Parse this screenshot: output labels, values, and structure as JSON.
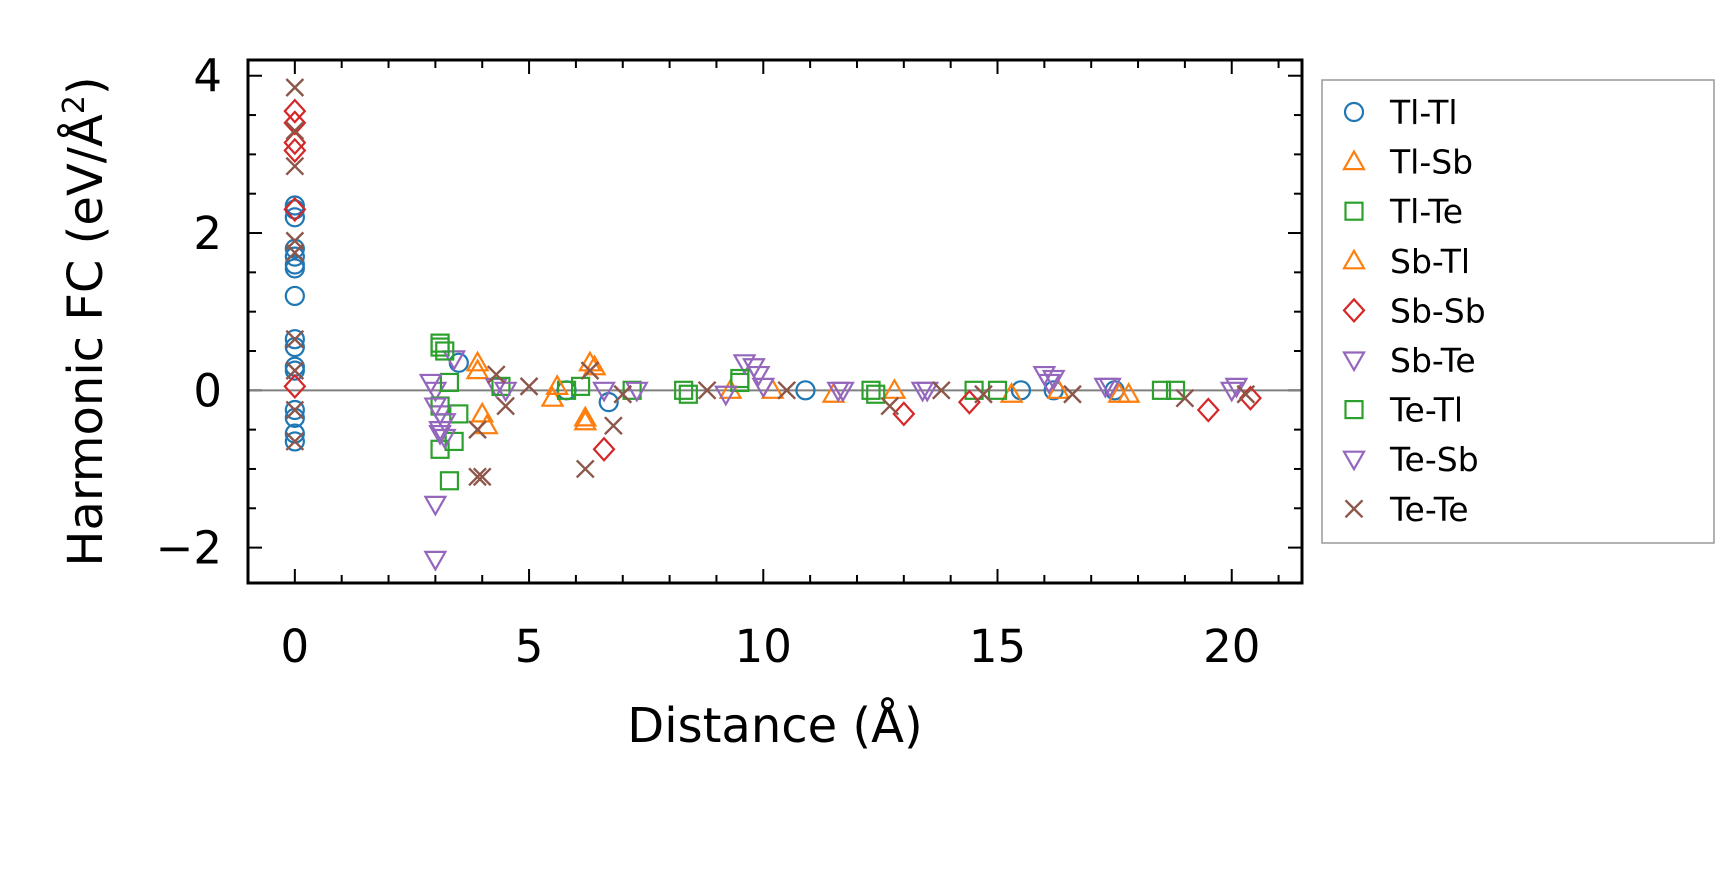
{
  "chart_data": {
    "type": "scatter",
    "title": "",
    "xlabel": "Distance (Å)",
    "ylabel": "Harmonic FC (eV/Å²)",
    "ylabel_parts": {
      "main": "Harmonic FC (eV/Å",
      "sup": "2",
      "end": ")"
    },
    "xlim": [
      -1,
      21.5
    ],
    "ylim": [
      -2.45,
      4.2
    ],
    "xticks": [
      0,
      5,
      10,
      15,
      20
    ],
    "xtick_labels": [
      "0",
      "5",
      "10",
      "15",
      "20"
    ],
    "yticks": [
      -2,
      0,
      2,
      4
    ],
    "ytick_labels": [
      "−2",
      "0",
      "2",
      "4"
    ],
    "zero_line": 0,
    "legend_position": "outside-right",
    "series": [
      {
        "name": "Tl-Tl",
        "marker": "circle",
        "fill": "none",
        "color": "#1f77b4",
        "points": [
          [
            0,
            2.35
          ],
          [
            0,
            2.3
          ],
          [
            0,
            2.2
          ],
          [
            0,
            1.8
          ],
          [
            0,
            1.7
          ],
          [
            0,
            1.6
          ],
          [
            0,
            1.55
          ],
          [
            0,
            1.2
          ],
          [
            0,
            0.65
          ],
          [
            0,
            0.55
          ],
          [
            0,
            0.3
          ],
          [
            0,
            0.25
          ],
          [
            0,
            -0.25
          ],
          [
            0,
            -0.35
          ],
          [
            0,
            -0.55
          ],
          [
            0,
            -0.65
          ],
          [
            3.5,
            0.35
          ],
          [
            5.8,
            0.0
          ],
          [
            6.7,
            -0.15
          ],
          [
            10.9,
            0.0
          ],
          [
            15.5,
            0.0
          ],
          [
            16.2,
            0.0
          ],
          [
            17.5,
            0.0
          ]
        ]
      },
      {
        "name": "Tl-Sb",
        "marker": "triangle-up",
        "fill": "none",
        "color": "#ff7f0e",
        "points": [
          [
            3.9,
            0.25
          ],
          [
            4.0,
            -0.3
          ],
          [
            5.5,
            -0.1
          ],
          [
            6.2,
            -0.4
          ],
          [
            6.3,
            0.35
          ],
          [
            9.3,
            0.0
          ],
          [
            11.5,
            -0.05
          ],
          [
            15.3,
            -0.05
          ],
          [
            17.8,
            -0.05
          ]
        ]
      },
      {
        "name": "Tl-Te",
        "marker": "square",
        "fill": "none",
        "color": "#2ca02c",
        "points": [
          [
            3.1,
            0.55
          ],
          [
            3.1,
            -0.75
          ],
          [
            3.3,
            -1.15
          ],
          [
            3.4,
            -0.65
          ],
          [
            3.5,
            -0.3
          ],
          [
            5.8,
            0.0
          ],
          [
            7.2,
            0.0
          ],
          [
            8.3,
            0.0
          ],
          [
            9.5,
            0.1
          ],
          [
            12.3,
            0.0
          ],
          [
            14.5,
            0.0
          ],
          [
            18.5,
            0.0
          ]
        ]
      },
      {
        "name": "Sb-Tl",
        "marker": "triangle-up",
        "fill": "none",
        "color": "#ff7f0e",
        "points": [
          [
            3.9,
            0.35
          ],
          [
            4.1,
            -0.45
          ],
          [
            5.6,
            0.05
          ],
          [
            6.2,
            -0.35
          ],
          [
            6.4,
            0.3
          ],
          [
            10.2,
            0.0
          ],
          [
            12.8,
            0.0
          ],
          [
            16.3,
            0.0
          ],
          [
            17.6,
            -0.05
          ]
        ]
      },
      {
        "name": "Sb-Sb",
        "marker": "diamond",
        "fill": "none",
        "color": "#d62728",
        "points": [
          [
            0,
            3.55
          ],
          [
            0,
            3.4
          ],
          [
            0,
            3.15
          ],
          [
            0,
            3.05
          ],
          [
            0,
            2.3
          ],
          [
            0,
            0.05
          ],
          [
            6.6,
            -0.75
          ],
          [
            13.0,
            -0.3
          ],
          [
            14.4,
            -0.15
          ],
          [
            19.5,
            -0.25
          ],
          [
            20.4,
            -0.1
          ]
        ]
      },
      {
        "name": "Sb-Te",
        "marker": "triangle-down",
        "fill": "none",
        "color": "#9467bd",
        "points": [
          [
            3.0,
            -1.45
          ],
          [
            3.0,
            -2.15
          ],
          [
            3.0,
            0.0
          ],
          [
            3.1,
            -0.3
          ],
          [
            3.1,
            -0.5
          ],
          [
            3.2,
            -0.6
          ],
          [
            3.4,
            0.4
          ],
          [
            4.3,
            0.05
          ],
          [
            6.6,
            0.0
          ],
          [
            9.6,
            0.35
          ],
          [
            9.8,
            0.3
          ],
          [
            9.9,
            0.2
          ],
          [
            11.6,
            0.0
          ],
          [
            13.5,
            0.0
          ],
          [
            16.0,
            0.2
          ],
          [
            16.2,
            0.15
          ],
          [
            17.3,
            0.05
          ],
          [
            20.1,
            0.05
          ]
        ]
      },
      {
        "name": "Te-Tl",
        "marker": "square",
        "fill": "none",
        "color": "#2ca02c",
        "points": [
          [
            3.1,
            0.6
          ],
          [
            3.2,
            0.5
          ],
          [
            3.1,
            -0.2
          ],
          [
            3.3,
            0.1
          ],
          [
            4.4,
            0.05
          ],
          [
            6.1,
            0.05
          ],
          [
            8.4,
            -0.05
          ],
          [
            9.5,
            0.15
          ],
          [
            12.4,
            -0.05
          ],
          [
            15.0,
            0.0
          ],
          [
            18.8,
            0.0
          ]
        ]
      },
      {
        "name": "Te-Sb",
        "marker": "triangle-down",
        "fill": "none",
        "color": "#9467bd",
        "points": [
          [
            2.9,
            0.1
          ],
          [
            3.0,
            -0.2
          ],
          [
            3.2,
            -0.4
          ],
          [
            3.1,
            -0.55
          ],
          [
            4.5,
            0.0
          ],
          [
            7.3,
            0.0
          ],
          [
            9.2,
            -0.05
          ],
          [
            10.0,
            0.05
          ],
          [
            11.7,
            0.0
          ],
          [
            13.4,
            0.0
          ],
          [
            16.1,
            0.1
          ],
          [
            17.4,
            0.05
          ],
          [
            20.0,
            0.0
          ]
        ]
      },
      {
        "name": "Te-Te",
        "marker": "x",
        "fill": "none",
        "color": "#8c564b",
        "points": [
          [
            0,
            3.85
          ],
          [
            0,
            3.3
          ],
          [
            0,
            2.85
          ],
          [
            0,
            1.9
          ],
          [
            0,
            1.75
          ],
          [
            0,
            0.65
          ],
          [
            0,
            0.25
          ],
          [
            0,
            -0.25
          ],
          [
            0,
            -0.65
          ],
          [
            3.9,
            -0.5
          ],
          [
            3.9,
            -1.1
          ],
          [
            4.0,
            -1.1
          ],
          [
            4.3,
            0.2
          ],
          [
            4.5,
            -0.2
          ],
          [
            5.0,
            0.05
          ],
          [
            6.2,
            -1.0
          ],
          [
            6.3,
            0.25
          ],
          [
            6.8,
            -0.45
          ],
          [
            7.0,
            -0.05
          ],
          [
            8.8,
            0.0
          ],
          [
            10.5,
            0.0
          ],
          [
            12.7,
            -0.2
          ],
          [
            13.8,
            0.0
          ],
          [
            14.7,
            -0.05
          ],
          [
            16.6,
            -0.05
          ],
          [
            19.0,
            -0.1
          ],
          [
            20.3,
            -0.05
          ]
        ]
      }
    ]
  }
}
